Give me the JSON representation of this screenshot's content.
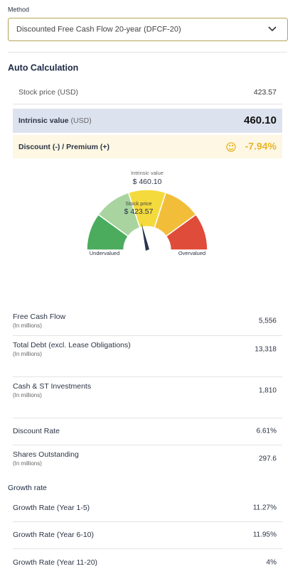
{
  "method": {
    "label": "Method",
    "selected": "Discounted Free Cash Flow 20-year (DFCF-20)"
  },
  "auto_calculation": {
    "title": "Auto Calculation",
    "stock_price": {
      "label": "Stock price",
      "unit": "(USD)",
      "value": "423.57"
    },
    "intrinsic_value": {
      "label": "Intrinsic value",
      "unit": "(USD)",
      "value": "460.10"
    },
    "discount_premium": {
      "label": "Discount (-) / Premium (+)",
      "value": "-7.94%"
    }
  },
  "gauge": {
    "intrinsic_label": "Intrinsic value",
    "intrinsic_value": "$ 460.10",
    "stock_label": "Stock price",
    "stock_value": "$ 423.57",
    "left_label": "Undervalued",
    "right_label": "Overvalued"
  },
  "inputs": [
    {
      "label": "Free Cash Flow",
      "note": "(In millions)",
      "value": "5,556"
    },
    {
      "label": "Total Debt (excl. Lease Obligations)",
      "note": "(In millions)",
      "value": "13,318"
    },
    {
      "label": "Cash & ST Investments",
      "note": "(In millions)",
      "value": "1,810"
    },
    {
      "label": "Discount Rate",
      "value": "6.61%"
    },
    {
      "label": "Shares Outstanding",
      "note": "(In millions)",
      "value": "297.6"
    }
  ],
  "growth": {
    "title": "Growth rate",
    "rows": [
      {
        "label": "Growth Rate (Year 1-5)",
        "value": "11.27%"
      },
      {
        "label": "Growth Rate (Year 6-10)",
        "value": "11.95%"
      },
      {
        "label": "Growth Rate (Year 11-20)",
        "value": "4%"
      }
    ]
  }
}
